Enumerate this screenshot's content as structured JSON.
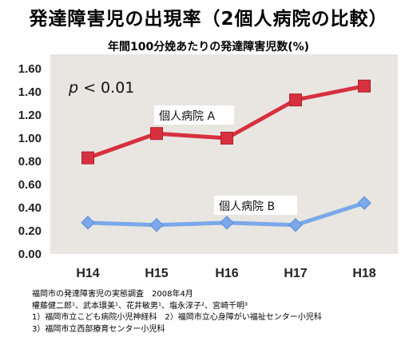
{
  "title": "発達障害児の出現率（2個人病院の比較）",
  "chart_data": {
    "type": "line",
    "title": "年間100分娩あたりの発達障害児数(%)",
    "categories": [
      "H14",
      "H15",
      "H16",
      "H17",
      "H18"
    ],
    "ylim": [
      0,
      1.6
    ],
    "yticks": [
      "0.00",
      "0.20",
      "0.40",
      "0.60",
      "0.80",
      "1.00",
      "1.20",
      "1.40",
      "1.60"
    ],
    "grid": false,
    "annotation": "p < 0.01",
    "series": [
      {
        "name": "個人病院 A",
        "values": [
          0.83,
          1.04,
          1.0,
          1.33,
          1.45
        ],
        "color": "#d7303e",
        "marker": "square"
      },
      {
        "name": "個人病院 B",
        "values": [
          0.27,
          0.25,
          0.27,
          0.25,
          0.44
        ],
        "color": "#7aa8ea",
        "marker": "diamond"
      }
    ],
    "plot_background": "#e9e6e2"
  },
  "source": {
    "line1": "福岡市の発達障害児の実態調査　2008年4月",
    "line2": "權藤健二郎¹、武本環美¹、花井敏男¹、塩永淳子²、宮崎千明³",
    "line3": "1）福岡市立こども病院小児神経科　2）福岡市立心身障がい福祉センター小児科",
    "line4": "3）福岡市立西部療育センター小児科"
  }
}
